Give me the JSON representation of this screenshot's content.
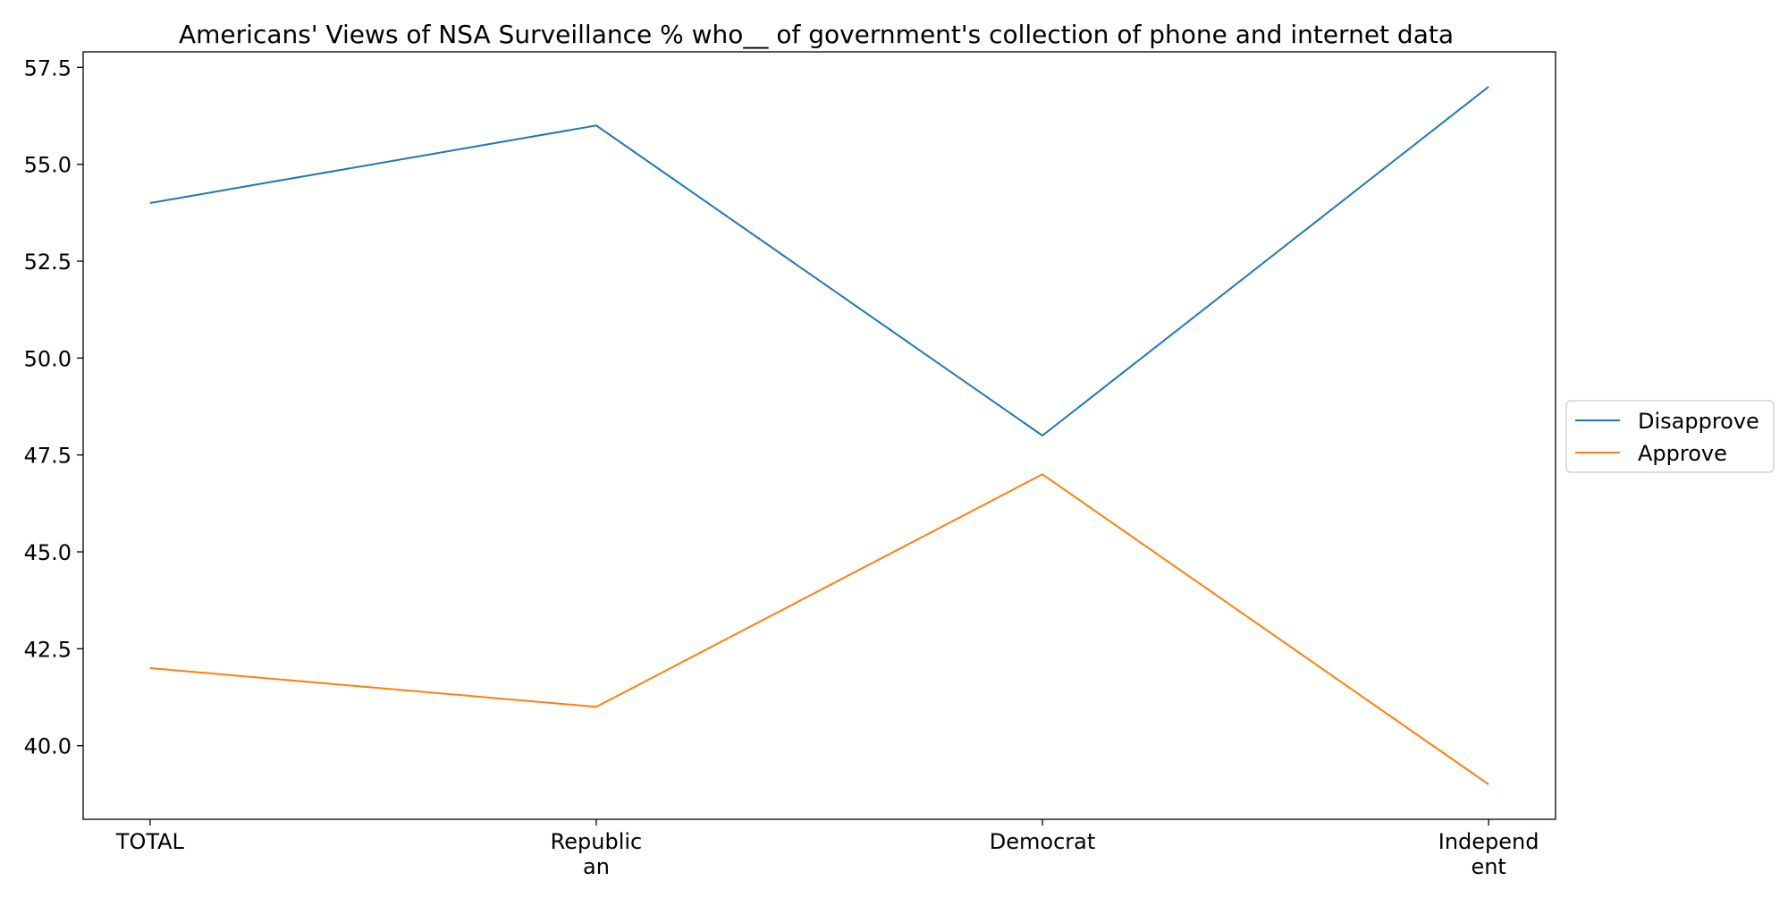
{
  "chart_data": {
    "type": "line",
    "title": "Americans' Views of NSA Surveillance % who__ of government's collection of phone and internet data",
    "xlabel": "",
    "ylabel": "",
    "categories": [
      [
        "TOTAL"
      ],
      [
        "Republic",
        "an"
      ],
      [
        "Democrat"
      ],
      [
        "Independ",
        "ent"
      ]
    ],
    "series": [
      {
        "name": "Disapprove",
        "values": [
          54,
          56,
          48,
          57
        ],
        "color": "#1f77b4"
      },
      {
        "name": "Approve",
        "values": [
          42,
          41,
          47,
          39
        ],
        "color": "#ff7f0e"
      }
    ],
    "ylim": [
      38.1,
      57.9
    ],
    "yticks": [
      40.0,
      42.5,
      45.0,
      47.5,
      50.0,
      52.5,
      55.0,
      57.5
    ],
    "ytick_labels": [
      "40.0",
      "42.5",
      "45.0",
      "47.5",
      "50.0",
      "52.5",
      "55.0",
      "57.5"
    ],
    "grid": false,
    "legend_position": "right"
  }
}
